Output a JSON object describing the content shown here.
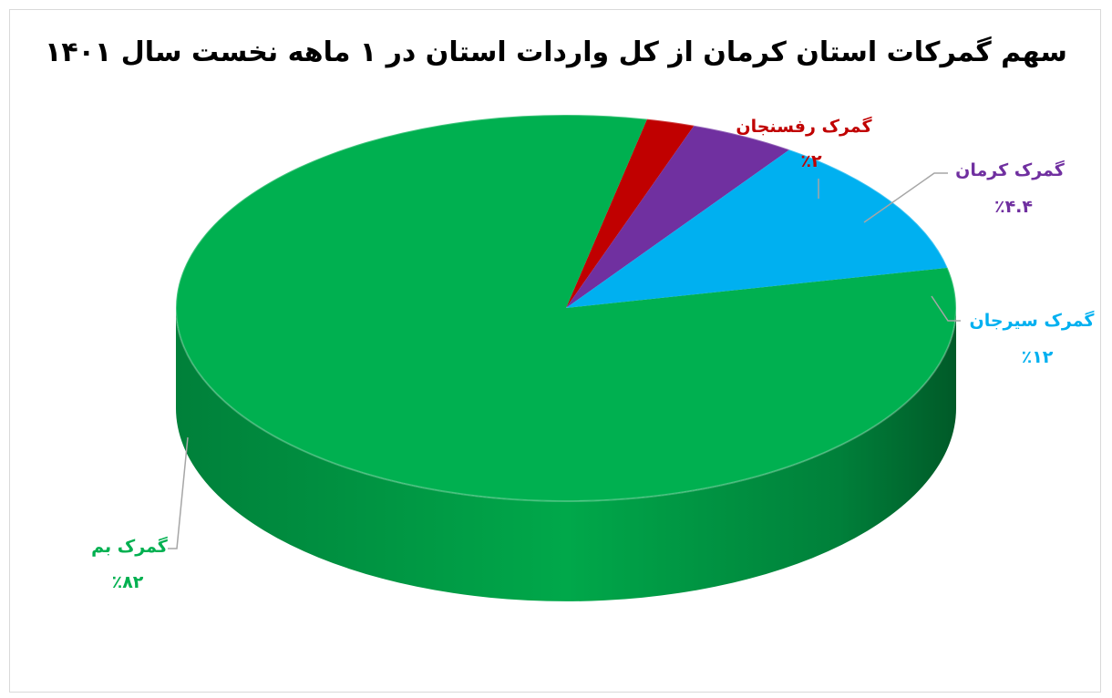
{
  "chart_data": {
    "type": "pie",
    "title": "سهم گمرکات استان کرمان از کل واردات استان در ۱ ماهه نخست سال ۱۴۰۱",
    "slices": [
      {
        "name": "گمرک رفسنجان",
        "value": 2,
        "label": "٪۲",
        "color": "#c00000"
      },
      {
        "name": "گمرک کرمان",
        "value": 4.4,
        "label": "٪۴.۴",
        "color": "#7030a0"
      },
      {
        "name": "گمرک سیرجان",
        "value": 12,
        "label": "٪۱۲",
        "color": "#00b0f0"
      },
      {
        "name": "گمرک بم",
        "value": 82,
        "label": "٪۸۲",
        "color": "#00b050"
      }
    ],
    "start_angle_deg": -78
  }
}
